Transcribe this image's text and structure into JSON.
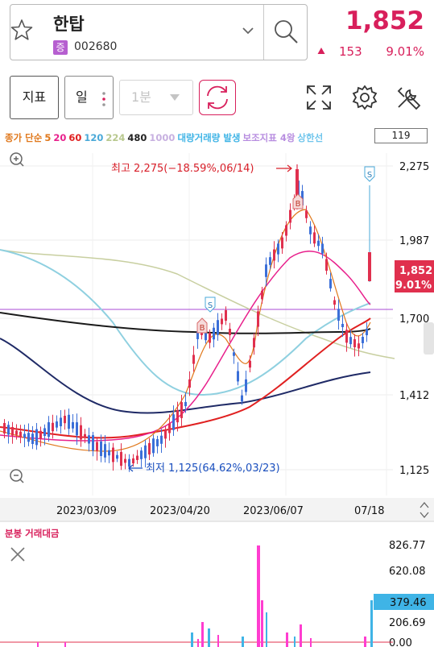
{
  "header": {
    "stock_name": "한탑",
    "market_badge": "증",
    "stock_code": "002680",
    "price": "1,852",
    "change": "153",
    "change_pct": "9.01%"
  },
  "toolbar": {
    "indicator_label": "지표",
    "period_label": "일",
    "minute_label": "1분"
  },
  "legend": {
    "items": [
      {
        "text": "종가 단순",
        "color": "#e0781c"
      },
      {
        "text": "5",
        "color": "#e0781c"
      },
      {
        "text": "20",
        "color": "#e8208c"
      },
      {
        "text": "60",
        "color": "#e02020"
      },
      {
        "text": "120",
        "color": "#4aa9d8"
      },
      {
        "text": "224",
        "color": "#b8c88e"
      },
      {
        "text": "480",
        "color": "#222222"
      },
      {
        "text": "1000",
        "color": "#c7b0e0"
      },
      {
        "text": "대량거래량 발생",
        "color": "#3fb4e6"
      },
      {
        "text": "보조지표 4왕",
        "color": "#b88ee0"
      },
      {
        "text": "상한선",
        "color": "#6fc5ec"
      }
    ],
    "count": "119"
  },
  "price_chart": {
    "y_ticks": [
      "2,275",
      "1,987",
      "1,700",
      "1,412",
      "1,125"
    ],
    "current_price": "1,852",
    "current_pct": "9.01%",
    "high_annotation": "최고 2,275(−18.59%,06/14)",
    "low_annotation": "최저 1,125(64.62%,03/23)",
    "x_ticks": [
      "2023/03/09",
      "2023/04/20",
      "2023/06/07",
      "07/18"
    ],
    "markers": [
      "B",
      "B",
      "S",
      "S"
    ]
  },
  "volume_chart": {
    "label": "분봉 거래대금",
    "y_ticks": [
      "826.77",
      "620.08",
      "206.69",
      "0.00"
    ],
    "current_value": "379.46"
  },
  "colors": {
    "up": "#e0304e",
    "down": "#3b6fd8",
    "accent": "#d81f5b"
  }
}
